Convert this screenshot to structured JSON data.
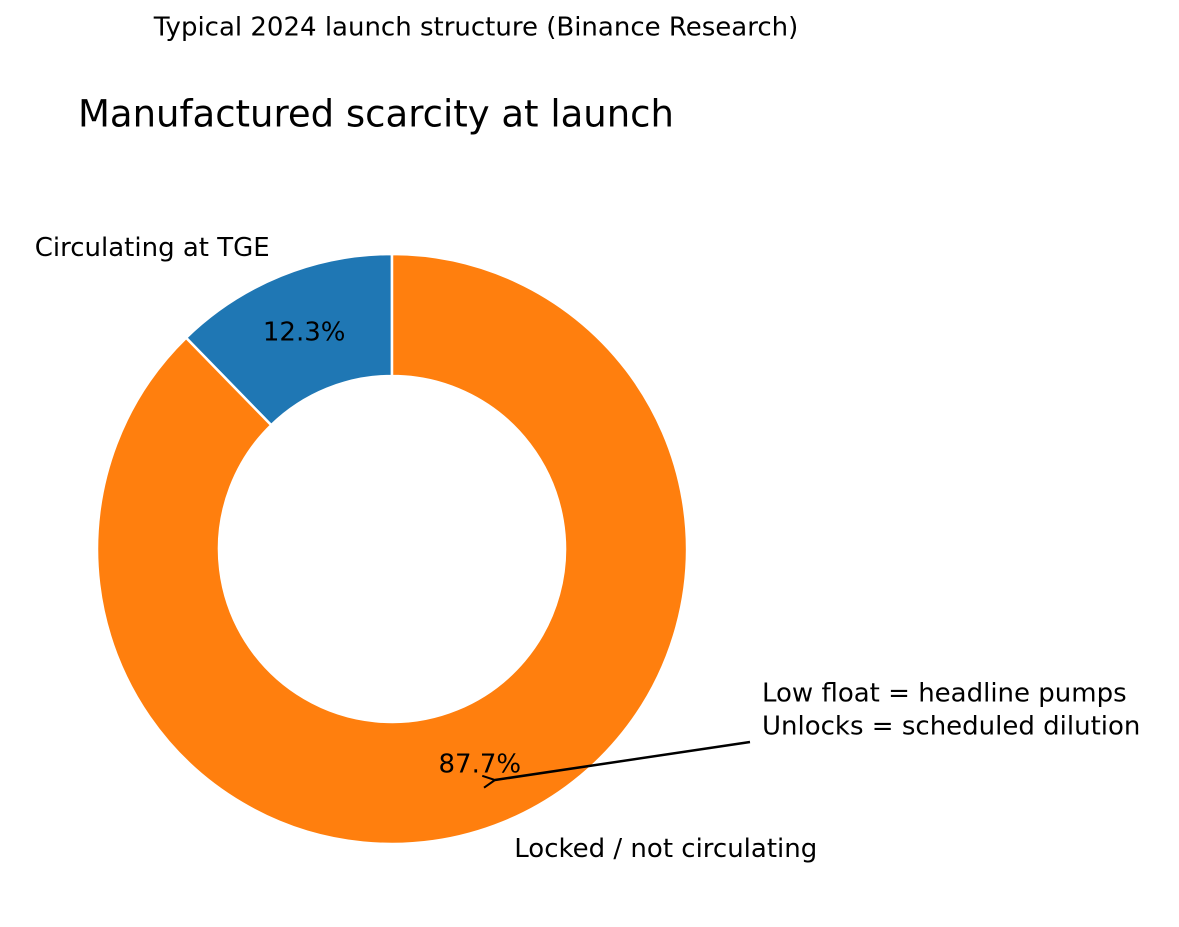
{
  "chart_data": {
    "type": "pie",
    "donut": true,
    "suptitle": "Typical 2024 launch structure (Binance Research)",
    "title": "Manufactured scarcity at launch",
    "categories": [
      "Circulating at TGE",
      "Locked / not circulating"
    ],
    "values": [
      12.3,
      87.7
    ],
    "value_labels": [
      "12.3%",
      "87.7%"
    ],
    "colors": [
      "#1f77b4",
      "#ff7f0e"
    ],
    "annotation": [
      "Low float = headline pumps",
      "Unlocks = scheduled dilution"
    ]
  }
}
